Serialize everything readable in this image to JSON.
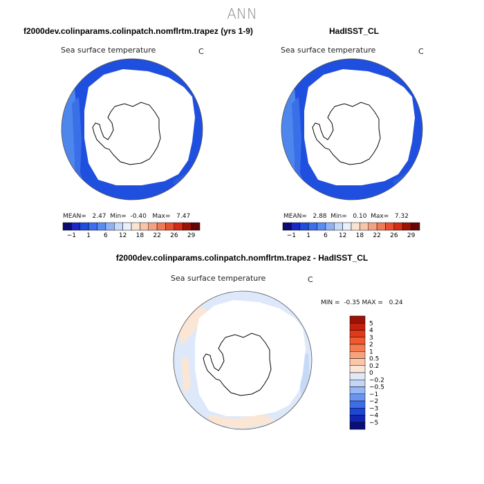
{
  "header": {
    "title": "ANN"
  },
  "panels": [
    {
      "title": "f2000dev.colinparams.colinpatch.nomflrtm.trapez (yrs 1-9)",
      "var_title": "Sea surface temperature",
      "unit": "C",
      "stats": {
        "mean_label": "MEAN=",
        "mean": "2.47",
        "min_label": "Min=",
        "min": "-0.40",
        "max_label": "Max=",
        "max": "7.47"
      }
    },
    {
      "title": "HadISST_CL",
      "var_title": "Sea surface temperature",
      "unit": "C",
      "stats": {
        "mean_label": "MEAN=",
        "mean": "2.88",
        "min_label": "Min=",
        "min": "0.10",
        "max_label": "Max=",
        "max": "7.32"
      }
    },
    {
      "title": "f2000dev.colinparams.colinpatch.nomflrtm.trapez - HadISST_CL",
      "var_title": "Sea surface temperature",
      "unit": "C",
      "stats": {
        "min_label": "MIN =",
        "min": "-0.35",
        "max_label": "MAX =",
        "max": "0.24"
      }
    }
  ],
  "chart_data": [
    {
      "type": "heatmap",
      "projection": "south polar stereographic",
      "title": "f2000dev.colinparams.colinpatch.nomflrtm.trapez (yrs 1-9)",
      "variable": "Sea surface temperature",
      "units": "C",
      "mean": 2.47,
      "min": -0.4,
      "max": 7.47,
      "colorbar": {
        "tick_labels": [
          "-1",
          "1",
          "6",
          "12",
          "18",
          "22",
          "26",
          "29"
        ],
        "colors": [
          "#0b0b72",
          "#1a28c8",
          "#1e4ee0",
          "#3b6ff0",
          "#5b8cf2",
          "#8fb2f4",
          "#c6dafa",
          "#ebf1fb",
          "#fbe3d3",
          "#f7c6aa",
          "#f4a181",
          "#ef7a57",
          "#e8512f",
          "#d32b14",
          "#9c1306",
          "#660505"
        ]
      }
    },
    {
      "type": "heatmap",
      "projection": "south polar stereographic",
      "title": "HadISST_CL",
      "variable": "Sea surface temperature",
      "units": "C",
      "mean": 2.88,
      "min": 0.1,
      "max": 7.32,
      "colorbar": {
        "tick_labels": [
          "-1",
          "1",
          "6",
          "12",
          "18",
          "22",
          "26",
          "29"
        ],
        "colors": [
          "#0b0b72",
          "#1a28c8",
          "#1e4ee0",
          "#3b6ff0",
          "#5b8cf2",
          "#8fb2f4",
          "#c6dafa",
          "#ebf1fb",
          "#fbe3d3",
          "#f7c6aa",
          "#f4a181",
          "#ef7a57",
          "#e8512f",
          "#d32b14",
          "#9c1306",
          "#660505"
        ]
      }
    },
    {
      "type": "heatmap",
      "projection": "south polar stereographic",
      "title": "f2000dev.colinparams.colinpatch.nomflrtm.trapez - HadISST_CL",
      "variable": "Sea surface temperature",
      "units": "C",
      "min": -0.35,
      "max": 0.24,
      "colorbar": {
        "orientation": "vertical",
        "tick_labels": [
          "5",
          "4",
          "3",
          "2",
          "1",
          "0.5",
          "0.2",
          "0",
          "-0.2",
          "-0.5",
          "-1",
          "-2",
          "-3",
          "-4",
          "-5"
        ],
        "colors": [
          "#9c1306",
          "#c42010",
          "#e03a1a",
          "#ef5a2e",
          "#f47c50",
          "#f7a27c",
          "#fac7ab",
          "#fbe6d6",
          "#dfe9f8",
          "#c3d6f6",
          "#97b8f4",
          "#6a94f0",
          "#3f6de8",
          "#1d46d6",
          "#1026b0",
          "#0a0f78"
        ]
      }
    }
  ]
}
